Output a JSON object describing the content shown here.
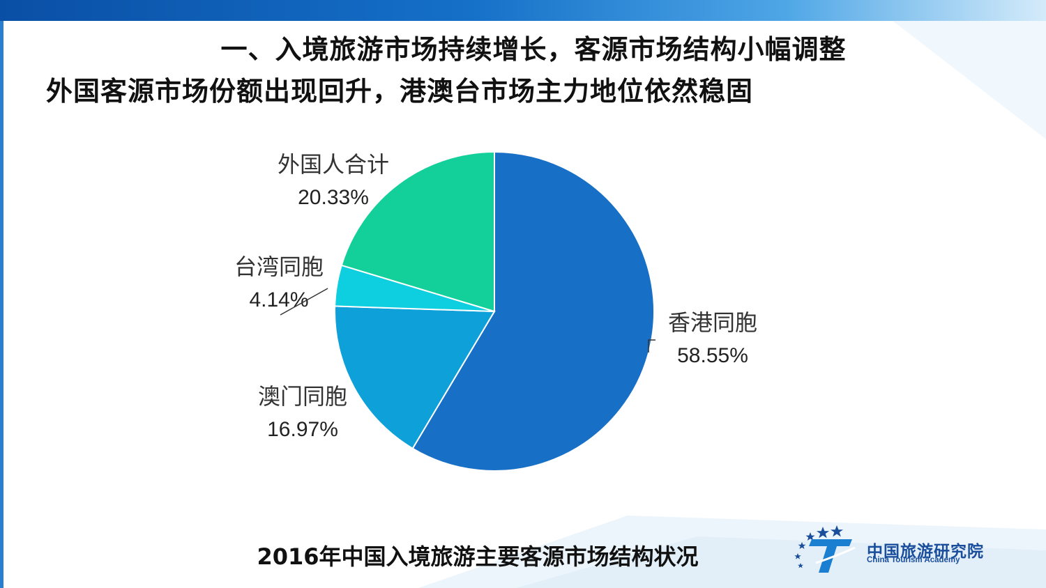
{
  "slide": {
    "title": "一、入境旅游市场持续增长，客源市场结构小幅调整",
    "subtitle": "外国客源市场份额出现回升，港澳台市场主力地位依然稳固",
    "caption": "2016年中国入境旅游主要客源市场结构状况"
  },
  "logo": {
    "name_cn": "中国旅游研究院",
    "name_en": "China Tourism Academy"
  },
  "colors": {
    "accent": "#1570c8"
  },
  "chart_data": {
    "type": "pie",
    "title": "",
    "slices": [
      {
        "label": "香港同胞",
        "value": 58.55,
        "value_label": "58.55%",
        "color": "#176fc6"
      },
      {
        "label": "澳门同胞",
        "value": 16.97,
        "value_label": "16.97%",
        "color": "#0ea0d8"
      },
      {
        "label": "台湾同胞",
        "value": 4.14,
        "value_label": "4.14%",
        "color": "#0ecfe0"
      },
      {
        "label": "外国人合计",
        "value": 20.33,
        "value_label": "20.33%",
        "color": "#13cf9a"
      }
    ],
    "start_angle_deg": 0,
    "direction": "clockwise",
    "legend": "none",
    "data_labels": "outside"
  }
}
